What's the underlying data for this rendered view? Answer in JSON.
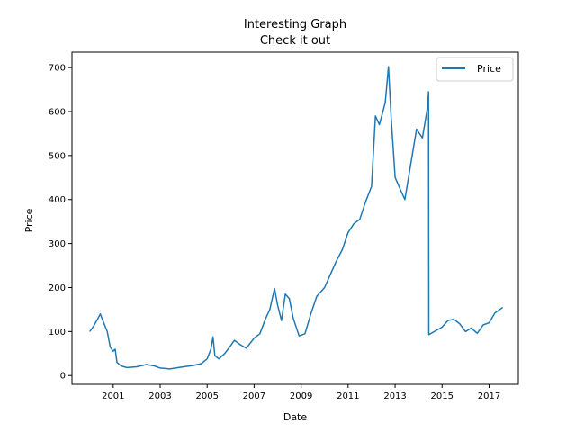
{
  "chart_data": {
    "type": "line",
    "title": "Interesting Graph",
    "subtitle": "Check it out",
    "xlabel": "Date",
    "ylabel": "Price",
    "x_ticks": [
      "2001",
      "2003",
      "2005",
      "2007",
      "2009",
      "2011",
      "2013",
      "2015",
      "2017"
    ],
    "y_ticks": [
      "0",
      "100",
      "200",
      "300",
      "400",
      "500",
      "600",
      "700"
    ],
    "xlim": [
      "1999-04-01",
      "2018-04-01"
    ],
    "ylim": [
      -20,
      735
    ],
    "grid": false,
    "legend_position": "top-right",
    "series": [
      {
        "name": "Price",
        "color": "#1f77b4",
        "points": [
          [
            "2000-01-01",
            100
          ],
          [
            "2000-03-01",
            112
          ],
          [
            "2000-05-01",
            128
          ],
          [
            "2000-06-15",
            140
          ],
          [
            "2000-08-01",
            122
          ],
          [
            "2000-10-01",
            100
          ],
          [
            "2000-11-15",
            65
          ],
          [
            "2001-01-01",
            55
          ],
          [
            "2001-02-01",
            60
          ],
          [
            "2001-03-01",
            30
          ],
          [
            "2001-05-01",
            22
          ],
          [
            "2001-08-01",
            18
          ],
          [
            "2002-01-01",
            20
          ],
          [
            "2002-06-01",
            25
          ],
          [
            "2002-10-01",
            22
          ],
          [
            "2003-01-01",
            17
          ],
          [
            "2003-06-01",
            15
          ],
          [
            "2004-01-01",
            20
          ],
          [
            "2004-06-01",
            23
          ],
          [
            "2004-10-01",
            27
          ],
          [
            "2005-01-01",
            38
          ],
          [
            "2005-03-01",
            60
          ],
          [
            "2005-04-01",
            88
          ],
          [
            "2005-05-01",
            45
          ],
          [
            "2005-07-01",
            38
          ],
          [
            "2005-10-01",
            50
          ],
          [
            "2006-01-01",
            68
          ],
          [
            "2006-03-01",
            80
          ],
          [
            "2006-06-01",
            70
          ],
          [
            "2006-09-01",
            62
          ],
          [
            "2007-01-01",
            85
          ],
          [
            "2007-04-01",
            95
          ],
          [
            "2007-07-01",
            130
          ],
          [
            "2007-09-01",
            150
          ],
          [
            "2007-11-15",
            198
          ],
          [
            "2008-01-01",
            160
          ],
          [
            "2008-03-01",
            125
          ],
          [
            "2008-05-01",
            185
          ],
          [
            "2008-07-01",
            175
          ],
          [
            "2008-09-01",
            130
          ],
          [
            "2008-12-01",
            90
          ],
          [
            "2009-03-01",
            95
          ],
          [
            "2009-06-01",
            140
          ],
          [
            "2009-09-01",
            180
          ],
          [
            "2010-01-01",
            200
          ],
          [
            "2010-04-01",
            230
          ],
          [
            "2010-07-01",
            260
          ],
          [
            "2010-10-01",
            285
          ],
          [
            "2011-01-01",
            325
          ],
          [
            "2011-04-01",
            345
          ],
          [
            "2011-07-01",
            355
          ],
          [
            "2011-10-01",
            395
          ],
          [
            "2012-01-01",
            430
          ],
          [
            "2012-03-01",
            590
          ],
          [
            "2012-05-01",
            570
          ],
          [
            "2012-08-01",
            620
          ],
          [
            "2012-09-20",
            702
          ],
          [
            "2012-11-01",
            585
          ],
          [
            "2013-01-01",
            450
          ],
          [
            "2013-04-01",
            420
          ],
          [
            "2013-06-01",
            400
          ],
          [
            "2013-09-01",
            480
          ],
          [
            "2013-12-01",
            560
          ],
          [
            "2014-03-01",
            540
          ],
          [
            "2014-05-20",
            610
          ],
          [
            "2014-06-05",
            645
          ],
          [
            "2014-06-09",
            93
          ],
          [
            "2014-09-01",
            100
          ],
          [
            "2015-01-01",
            110
          ],
          [
            "2015-04-01",
            125
          ],
          [
            "2015-07-01",
            128
          ],
          [
            "2015-10-01",
            118
          ],
          [
            "2016-01-01",
            100
          ],
          [
            "2016-04-01",
            108
          ],
          [
            "2016-07-01",
            96
          ],
          [
            "2016-10-01",
            115
          ],
          [
            "2017-01-01",
            120
          ],
          [
            "2017-04-01",
            142
          ],
          [
            "2017-08-01",
            155
          ]
        ]
      }
    ]
  }
}
